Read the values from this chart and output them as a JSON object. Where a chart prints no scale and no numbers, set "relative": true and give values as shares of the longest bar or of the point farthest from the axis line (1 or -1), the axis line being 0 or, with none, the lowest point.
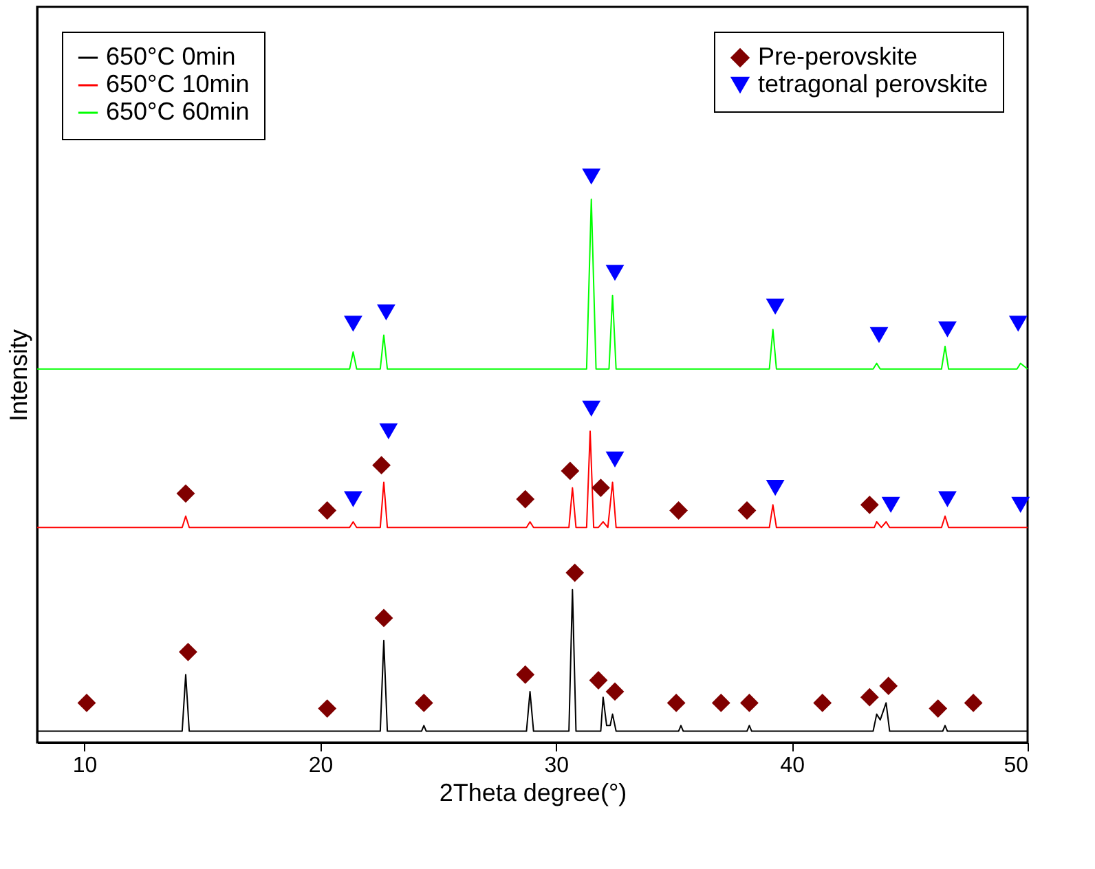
{
  "chart_data": {
    "type": "line",
    "xlabel": "2Theta degree(°)",
    "ylabel": "Intensity",
    "relative": true,
    "xlim": [
      8,
      50
    ],
    "xticks": [
      10,
      20,
      30,
      40,
      50
    ],
    "grid": false,
    "line_style": "solid",
    "legend": "top left",
    "series": [
      {
        "name": "650°C 0min",
        "color": "#000000",
        "x": [
          8,
          10,
          14.15,
          14.3,
          14.45,
          22.55,
          22.7,
          22.85,
          24.3,
          24.4,
          24.5,
          28.75,
          28.9,
          29.05,
          30.55,
          30.7,
          30.85,
          31.9,
          32.0,
          32.15,
          32.3,
          32.4,
          32.55,
          35.2,
          35.3,
          35.4,
          38.1,
          38.2,
          38.3,
          43.45,
          43.6,
          43.75,
          44.0,
          44.15,
          46.4,
          46.5,
          46.6,
          47.6,
          47.7,
          47.8,
          50
        ],
        "values": [
          0.02,
          0.02,
          0.02,
          0.12,
          0.02,
          0.02,
          0.18,
          0.02,
          0.02,
          0.03,
          0.02,
          0.02,
          0.09,
          0.02,
          0.02,
          0.27,
          0.02,
          0.02,
          0.08,
          0.03,
          0.03,
          0.05,
          0.02,
          0.02,
          0.03,
          0.02,
          0.02,
          0.03,
          0.02,
          0.02,
          0.05,
          0.04,
          0.07,
          0.02,
          0.02,
          0.03,
          0.02,
          0.02,
          0.02,
          0.02,
          0.02
        ]
      },
      {
        "name": "650°C 10min",
        "color": "#ff0000",
        "x": [
          8,
          14.15,
          14.3,
          14.45,
          21.25,
          21.4,
          21.55,
          22.55,
          22.7,
          22.85,
          28.75,
          28.9,
          29.05,
          30.55,
          30.7,
          30.85,
          31.3,
          31.45,
          31.6,
          31.8,
          32.0,
          32.2,
          32.4,
          32.55,
          39.05,
          39.2,
          39.35,
          43.5,
          43.6,
          43.8,
          44.0,
          44.15,
          46.35,
          46.5,
          46.65,
          49.6,
          49.7,
          50
        ],
        "values": [
          0.38,
          0.38,
          0.4,
          0.38,
          0.38,
          0.39,
          0.38,
          0.38,
          0.46,
          0.38,
          0.38,
          0.39,
          0.38,
          0.38,
          0.45,
          0.38,
          0.38,
          0.55,
          0.38,
          0.38,
          0.39,
          0.38,
          0.46,
          0.38,
          0.38,
          0.42,
          0.38,
          0.38,
          0.39,
          0.38,
          0.39,
          0.38,
          0.38,
          0.4,
          0.38,
          0.38,
          0.38,
          0.38
        ]
      },
      {
        "name": "650°C 60min",
        "color": "#00ff00",
        "x": [
          8,
          21.25,
          21.4,
          21.55,
          22.55,
          22.7,
          22.85,
          31.3,
          31.5,
          31.7,
          32.25,
          32.4,
          32.55,
          39.05,
          39.2,
          39.35,
          43.45,
          43.6,
          43.75,
          46.35,
          46.5,
          46.65,
          49.55,
          49.7,
          50
        ],
        "values": [
          0.66,
          0.66,
          0.69,
          0.66,
          0.66,
          0.72,
          0.66,
          0.66,
          0.96,
          0.66,
          0.66,
          0.79,
          0.66,
          0.66,
          0.73,
          0.66,
          0.66,
          0.67,
          0.66,
          0.66,
          0.7,
          0.66,
          0.66,
          0.67,
          0.66
        ]
      },
      {
        "name": "Pre-perovskite",
        "color": "#800000",
        "type": "scatter",
        "marker": "diamond",
        "x": [
          10.1,
          14.4,
          20.3,
          22.7,
          24.4,
          28.7,
          30.8,
          31.8,
          32.5,
          35.1,
          37.0,
          38.2,
          41.3,
          43.3,
          44.1,
          46.2,
          47.7,
          14.3,
          20.3,
          22.6,
          28.7,
          30.6,
          31.9,
          35.2,
          38.1,
          43.3
        ],
        "values": [
          0.07,
          0.16,
          0.06,
          0.22,
          0.07,
          0.12,
          0.3,
          0.11,
          0.09,
          0.07,
          0.07,
          0.07,
          0.07,
          0.08,
          0.1,
          0.06,
          0.07,
          0.44,
          0.41,
          0.49,
          0.43,
          0.48,
          0.45,
          0.41,
          0.41,
          0.42
        ]
      },
      {
        "name": "tetragonal perovskite",
        "color": "#0000ff",
        "type": "scatter",
        "marker": "triangle",
        "x": [
          21.4,
          22.8,
          31.5,
          32.5,
          39.3,
          43.7,
          46.6,
          49.6,
          21.4,
          22.9,
          31.5,
          32.5,
          39.3,
          44.2,
          46.6,
          49.7
        ],
        "values": [
          0.74,
          0.76,
          1.0,
          0.83,
          0.77,
          0.72,
          0.73,
          0.74,
          0.43,
          0.55,
          0.59,
          0.5,
          0.45,
          0.42,
          0.43,
          0.42
        ]
      }
    ]
  }
}
